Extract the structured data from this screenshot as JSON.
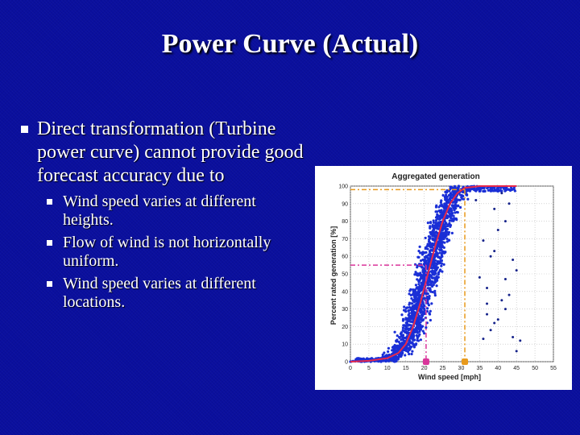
{
  "slide": {
    "title": "Power Curve (Actual)",
    "bullet_main": "Direct transformation (Turbine power curve) cannot provide good forecast accuracy due to",
    "sub_bullets": [
      "Wind speed varies at different heights.",
      "Flow of wind is not horizontally uniform.",
      "Wind speed varies at different locations."
    ],
    "bullet_icon": "square-bullet-icon"
  },
  "colors": {
    "background": "#0a0f9e",
    "text": "#ffffff",
    "scatter": "#1a2fd6",
    "curve": "#e8294a",
    "marker_pink": "#d9359a",
    "marker_orange": "#e89a1c"
  },
  "chart_data": {
    "type": "scatter",
    "title": "Aggregated generation",
    "xlabel": "Wind speed [mph]",
    "ylabel": "Percent rated generation [%]",
    "xlim": [
      0,
      55
    ],
    "ylim": [
      0,
      100
    ],
    "xticks": [
      0,
      5,
      10,
      15,
      20,
      25,
      30,
      35,
      40,
      45,
      50,
      55
    ],
    "yticks": [
      0,
      10,
      20,
      30,
      40,
      50,
      60,
      70,
      80,
      90,
      100
    ],
    "series": [
      {
        "kind": "curve",
        "x": [
          0,
          5,
          10,
          13,
          15,
          17,
          19,
          21,
          23,
          25,
          27,
          29,
          31,
          35,
          40,
          45
        ],
        "y": [
          0,
          0.5,
          2,
          5,
          10,
          20,
          34,
          50,
          66,
          80,
          90,
          96,
          99,
          100,
          100,
          100
        ]
      },
      {
        "kind": "scatter-band",
        "center_x": [
          0,
          5,
          10,
          13,
          15,
          17,
          19,
          21,
          23,
          25,
          27,
          29,
          31,
          35,
          40,
          45
        ],
        "center_y": [
          0,
          0.5,
          2,
          5,
          10,
          20,
          34,
          50,
          66,
          80,
          90,
          96,
          99,
          100,
          100,
          100
        ],
        "spread_mph": 3.2
      },
      {
        "kind": "outliers",
        "points": [
          [
            36,
            13
          ],
          [
            37,
            27
          ],
          [
            38,
            18
          ],
          [
            39,
            22
          ],
          [
            44,
            14
          ],
          [
            45,
            6
          ],
          [
            46,
            12
          ],
          [
            42,
            30
          ],
          [
            40,
            75
          ],
          [
            39,
            87
          ],
          [
            42,
            80
          ],
          [
            38,
            60
          ],
          [
            37,
            42
          ],
          [
            44,
            58
          ],
          [
            35,
            48
          ],
          [
            34,
            92
          ],
          [
            41,
            96
          ],
          [
            43,
            90
          ],
          [
            36,
            69
          ],
          [
            39,
            63
          ],
          [
            42,
            47
          ],
          [
            45,
            52
          ],
          [
            41,
            35
          ],
          [
            43,
            38
          ],
          [
            37,
            33
          ],
          [
            40,
            24
          ]
        ]
      }
    ],
    "annotations": [
      {
        "style": "dash-dot",
        "color": "pink",
        "x": 20.5,
        "y": 55
      },
      {
        "style": "dash-dot",
        "color": "orange",
        "x": 31,
        "y": 98
      }
    ]
  }
}
